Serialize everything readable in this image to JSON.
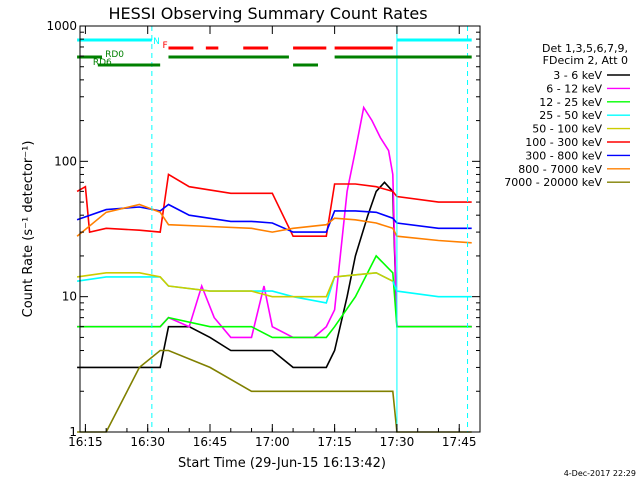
{
  "chart_data": {
    "type": "line",
    "title": "HESSI Observing Summary Count Rates",
    "xlabel": "Start Time (29-Jun-15 16:13:42)",
    "ylabel": "Count Rate (s⁻¹ detector⁻¹)",
    "yscale": "log",
    "ylim": [
      1,
      1000
    ],
    "xlim": [
      "16:13:42",
      "17:50:00"
    ],
    "x_ticks": [
      "16:15",
      "16:30",
      "16:45",
      "17:00",
      "17:15",
      "17:30",
      "17:45"
    ],
    "y_ticks": [
      "1",
      "10",
      "100",
      "1000"
    ],
    "legend_header": [
      "Det 1,3,5,6,7,9,",
      "FDecim 2, Att 0"
    ],
    "footer": "4-Dec-2017 22:29",
    "series": [
      {
        "name": "3 - 6 keV",
        "color": "#000000",
        "x": [
          "16:13",
          "16:20",
          "16:28",
          "16:33",
          "16:35",
          "16:40",
          "16:45",
          "16:50",
          "16:55",
          "17:00",
          "17:05",
          "17:10",
          "17:13",
          "17:15",
          "17:18",
          "17:20",
          "17:23",
          "17:25",
          "17:27",
          "17:29",
          "17:30",
          "17:40",
          "17:48"
        ],
        "y": [
          3,
          3,
          3,
          3,
          6,
          6,
          5,
          4,
          4,
          4,
          3,
          3,
          3,
          4,
          10,
          20,
          40,
          60,
          70,
          60,
          6,
          6,
          6
        ]
      },
      {
        "name": "6 - 12 keV",
        "color": "#ff00ff",
        "x": [
          "16:13",
          "16:20",
          "16:28",
          "16:33",
          "16:35",
          "16:40",
          "16:43",
          "16:46",
          "16:50",
          "16:55",
          "16:58",
          "17:00",
          "17:05",
          "17:10",
          "17:13",
          "17:15",
          "17:18",
          "17:20",
          "17:22",
          "17:24",
          "17:26",
          "17:28",
          "17:29",
          "17:30",
          "17:40",
          "17:48"
        ],
        "y": [
          6,
          6,
          6,
          6,
          7,
          6,
          12,
          7,
          5,
          5,
          12,
          6,
          5,
          5,
          6,
          8,
          60,
          120,
          250,
          200,
          150,
          120,
          80,
          6,
          6,
          6
        ]
      },
      {
        "name": "12 - 25 keV",
        "color": "#00ff00",
        "x": [
          "16:13",
          "16:20",
          "16:28",
          "16:33",
          "16:35",
          "16:45",
          "16:55",
          "17:00",
          "17:05",
          "17:13",
          "17:15",
          "17:20",
          "17:25",
          "17:29",
          "17:30",
          "17:40",
          "17:48"
        ],
        "y": [
          6,
          6,
          6,
          6,
          7,
          6,
          6,
          5,
          5,
          5,
          6,
          10,
          20,
          15,
          6,
          6,
          6
        ]
      },
      {
        "name": "25 - 50 keV",
        "color": "#00ffff",
        "x": [
          "16:13",
          "16:20",
          "16:28",
          "16:33",
          "16:35",
          "16:45",
          "16:55",
          "17:00",
          "17:05",
          "17:13",
          "17:15",
          "17:25",
          "17:29",
          "17:30",
          "17:40",
          "17:48"
        ],
        "y": [
          13,
          14,
          14,
          14,
          12,
          11,
          11,
          11,
          10,
          9,
          14,
          15,
          13,
          11,
          10,
          10
        ]
      },
      {
        "name": "50 - 100 keV",
        "color": "#cccc00",
        "x": [
          "16:13",
          "16:20",
          "16:28",
          "16:33",
          "16:35",
          "16:45",
          "16:55",
          "17:00",
          "17:05",
          "17:13",
          "17:15",
          "17:25",
          "17:29"
        ],
        "y": [
          14,
          15,
          15,
          14,
          12,
          11,
          11,
          10,
          10,
          10,
          14,
          15,
          13
        ]
      },
      {
        "name": "100 - 300 keV",
        "color": "#ff0000",
        "x": [
          "16:13",
          "16:15",
          "16:16",
          "16:20",
          "16:28",
          "16:33",
          "16:35",
          "16:40",
          "16:50",
          "16:55",
          "17:00",
          "17:05",
          "17:13",
          "17:15",
          "17:20",
          "17:25",
          "17:29",
          "17:30",
          "17:40",
          "17:48"
        ],
        "y": [
          60,
          65,
          30,
          32,
          31,
          30,
          80,
          65,
          58,
          58,
          58,
          28,
          28,
          68,
          68,
          65,
          60,
          55,
          50,
          50
        ]
      },
      {
        "name": "300 - 800 keV",
        "color": "#0000ff",
        "x": [
          "16:13",
          "16:20",
          "16:28",
          "16:33",
          "16:35",
          "16:40",
          "16:50",
          "16:55",
          "17:00",
          "17:05",
          "17:13",
          "17:15",
          "17:20",
          "17:25",
          "17:29",
          "17:30",
          "17:40",
          "17:48"
        ],
        "y": [
          37,
          44,
          46,
          43,
          48,
          40,
          36,
          36,
          35,
          30,
          30,
          43,
          43,
          42,
          38,
          35,
          32,
          32
        ]
      },
      {
        "name": "800 - 7000 keV",
        "color": "#ff8000",
        "x": [
          "16:13",
          "16:20",
          "16:28",
          "16:33",
          "16:35",
          "16:45",
          "16:55",
          "17:00",
          "17:05",
          "17:13",
          "17:15",
          "17:20",
          "17:25",
          "17:29",
          "17:30",
          "17:40",
          "17:48"
        ],
        "y": [
          28,
          42,
          48,
          42,
          34,
          33,
          32,
          30,
          32,
          34,
          38,
          37,
          35,
          32,
          28,
          26,
          25
        ]
      },
      {
        "name": "7000 - 20000 keV",
        "color": "#808000",
        "x": [
          "16:13",
          "16:20",
          "16:28",
          "16:33",
          "16:35",
          "16:45",
          "16:55",
          "17:00",
          "17:05",
          "17:10",
          "17:15",
          "17:20",
          "17:25",
          "17:29",
          "17:30",
          "17:40",
          "17:48"
        ],
        "y": [
          1,
          1,
          3,
          4,
          4,
          3,
          2,
          2,
          2,
          2,
          2,
          2,
          2,
          2,
          1,
          1,
          1
        ]
      }
    ],
    "state_bars": [
      {
        "label": "N",
        "color": "#00ffff",
        "segments": [
          [
            "16:13",
            "16:31"
          ],
          [
            "17:30",
            "17:48"
          ]
        ]
      },
      {
        "label": "F",
        "color": "#ff0000",
        "segments": [
          [
            "16:35",
            "16:41"
          ],
          [
            "16:44",
            "16:47"
          ],
          [
            "16:53",
            "16:59"
          ],
          [
            "17:05",
            "17:13"
          ],
          [
            "17:15",
            "17:29"
          ]
        ]
      },
      {
        "label": "RD0",
        "color": "#008000",
        "segments": [
          [
            "16:13",
            "16:19"
          ],
          [
            "16:35",
            "17:04"
          ],
          [
            "17:15",
            "17:48"
          ]
        ]
      },
      {
        "label": "RD6",
        "color": "#008000",
        "segments": [
          [
            "16:18",
            "16:33"
          ],
          [
            "17:05",
            "17:11"
          ]
        ]
      }
    ],
    "vlines": [
      {
        "time": "16:31",
        "style": "dashed"
      },
      {
        "time": "17:30",
        "style": "solid"
      },
      {
        "time": "17:47",
        "style": "dashed"
      }
    ]
  }
}
